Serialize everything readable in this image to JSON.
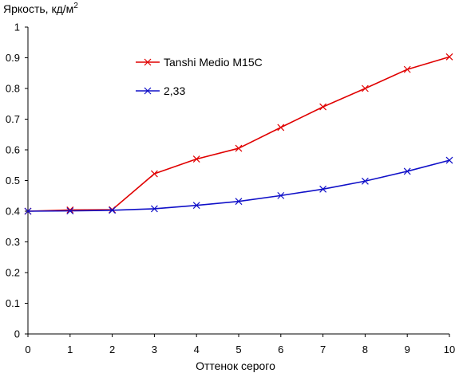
{
  "chart_data": {
    "type": "line",
    "title": "",
    "ylabel": "Яркость, кд/м",
    "ylabel_sup": "2",
    "xlabel": "Оттенок серого",
    "x": [
      0,
      1,
      2,
      3,
      4,
      5,
      6,
      7,
      8,
      9,
      10
    ],
    "xlim": [
      0,
      10
    ],
    "ylim": [
      0,
      1
    ],
    "x_ticks": [
      "0",
      "1",
      "2",
      "3",
      "4",
      "5",
      "6",
      "7",
      "8",
      "9",
      "10"
    ],
    "y_ticks": [
      "0",
      "0.1",
      "0.2",
      "0.3",
      "0.4",
      "0.5",
      "0.6",
      "0.7",
      "0.8",
      "0.9",
      "1"
    ],
    "grid": false,
    "legend_position": "upper-middle",
    "series": [
      {
        "name": "Tanshi Medio M15C",
        "color": "#e00000",
        "marker": "x",
        "values": [
          0.4,
          0.404,
          0.405,
          0.522,
          0.57,
          0.605,
          0.673,
          0.74,
          0.8,
          0.862,
          0.903
        ]
      },
      {
        "name": "2,33",
        "color": "#1010c8",
        "marker": "x",
        "values": [
          0.4,
          0.401,
          0.403,
          0.408,
          0.419,
          0.432,
          0.451,
          0.472,
          0.498,
          0.53,
          0.566
        ]
      }
    ]
  }
}
